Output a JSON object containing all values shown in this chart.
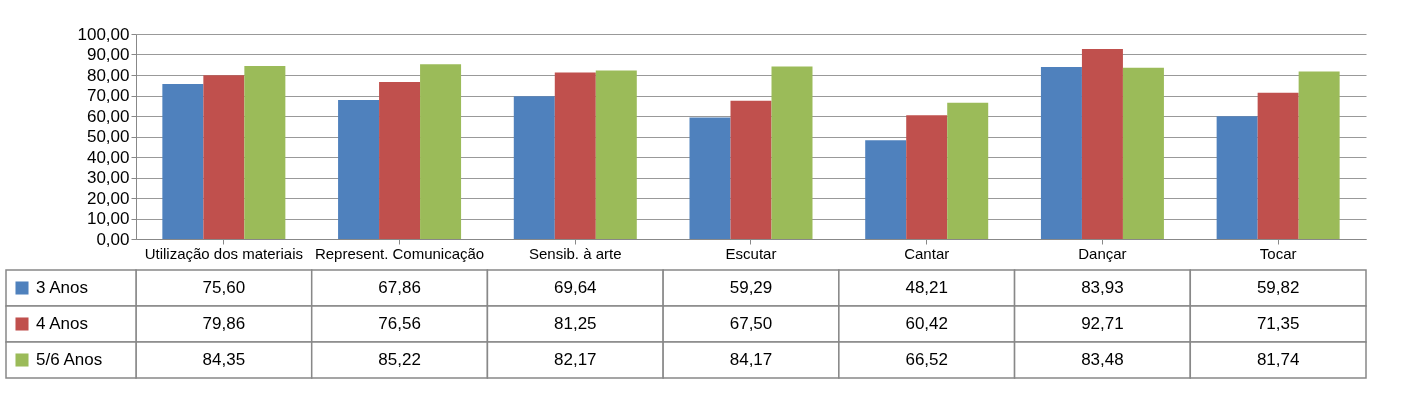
{
  "chart_data": {
    "type": "bar",
    "categories": [
      "Utilização dos materiais",
      "Represent. Comunicação",
      "Sensib. à arte",
      "Escutar",
      "Cantar",
      "Dançar",
      "Tocar"
    ],
    "series": [
      {
        "name": "3 Anos",
        "color": "#4f81bd",
        "values": [
          75.6,
          67.86,
          69.64,
          59.29,
          48.21,
          83.93,
          59.82
        ],
        "value_labels": [
          "75,60",
          "67,86",
          "69,64",
          "59,29",
          "48,21",
          "83,93",
          "59,82"
        ]
      },
      {
        "name": "4 Anos",
        "color": "#c0504d",
        "values": [
          79.86,
          76.56,
          81.25,
          67.5,
          60.42,
          92.71,
          71.35
        ],
        "value_labels": [
          "79,86",
          "76,56",
          "81,25",
          "67,50",
          "60,42",
          "92,71",
          "71,35"
        ]
      },
      {
        "name": "5/6 Anos",
        "color": "#9bbb59",
        "values": [
          84.35,
          85.22,
          82.17,
          84.17,
          66.52,
          83.48,
          81.74
        ],
        "value_labels": [
          "84,35",
          "85,22",
          "82,17",
          "84,17",
          "66,52",
          "83,48",
          "81,74"
        ]
      }
    ],
    "ylim": [
      0,
      100
    ],
    "yticks": [
      {
        "value": 0,
        "label": "0,00"
      },
      {
        "value": 10,
        "label": "10,00"
      },
      {
        "value": 20,
        "label": "20,00"
      },
      {
        "value": 30,
        "label": "30,00"
      },
      {
        "value": 40,
        "label": "40,00"
      },
      {
        "value": 50,
        "label": "50,00"
      },
      {
        "value": 60,
        "label": "60,00"
      },
      {
        "value": 70,
        "label": "70,00"
      },
      {
        "value": 80,
        "label": "80,00"
      },
      {
        "value": 90,
        "label": "90,00"
      },
      {
        "value": 100,
        "label": "100,00"
      }
    ],
    "grid": "y",
    "legend": "bottom"
  }
}
